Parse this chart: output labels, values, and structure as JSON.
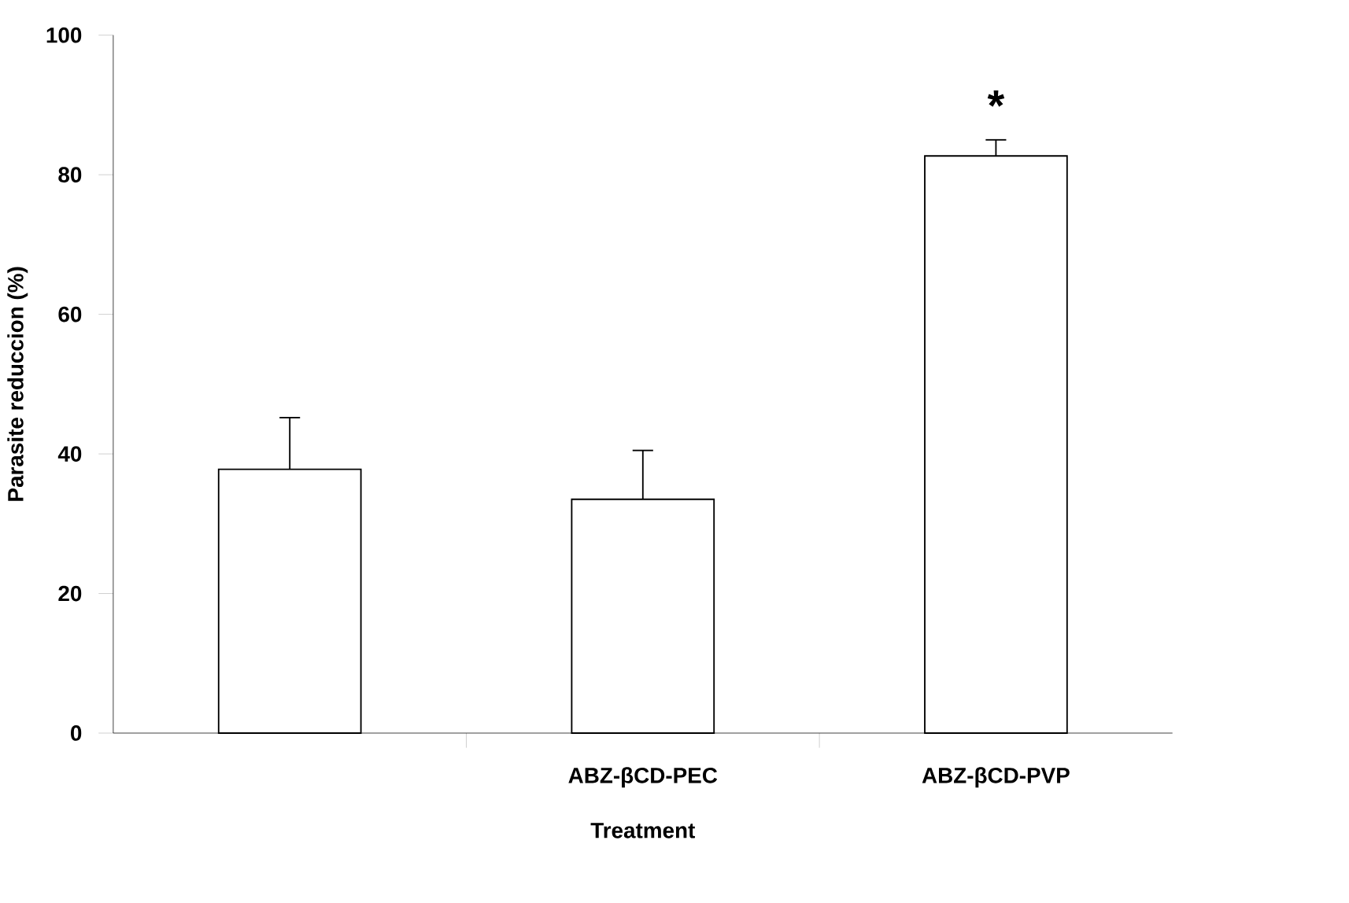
{
  "chart_data": {
    "type": "bar",
    "xlabel": "Treatment",
    "ylabel": "Parasite reduccion (%)",
    "categories": [
      null,
      "ABZ-βCD-PEC",
      "ABZ-βCD-PVP"
    ],
    "values": [
      37.8,
      33.5,
      82.7
    ],
    "errors": [
      7.4,
      7.0,
      2.3
    ],
    "color": "#ffffff",
    "ylim": [
      0,
      100
    ],
    "yticks": [
      0,
      20,
      40,
      60,
      80,
      100
    ],
    "annotations": [
      "*"
    ]
  }
}
